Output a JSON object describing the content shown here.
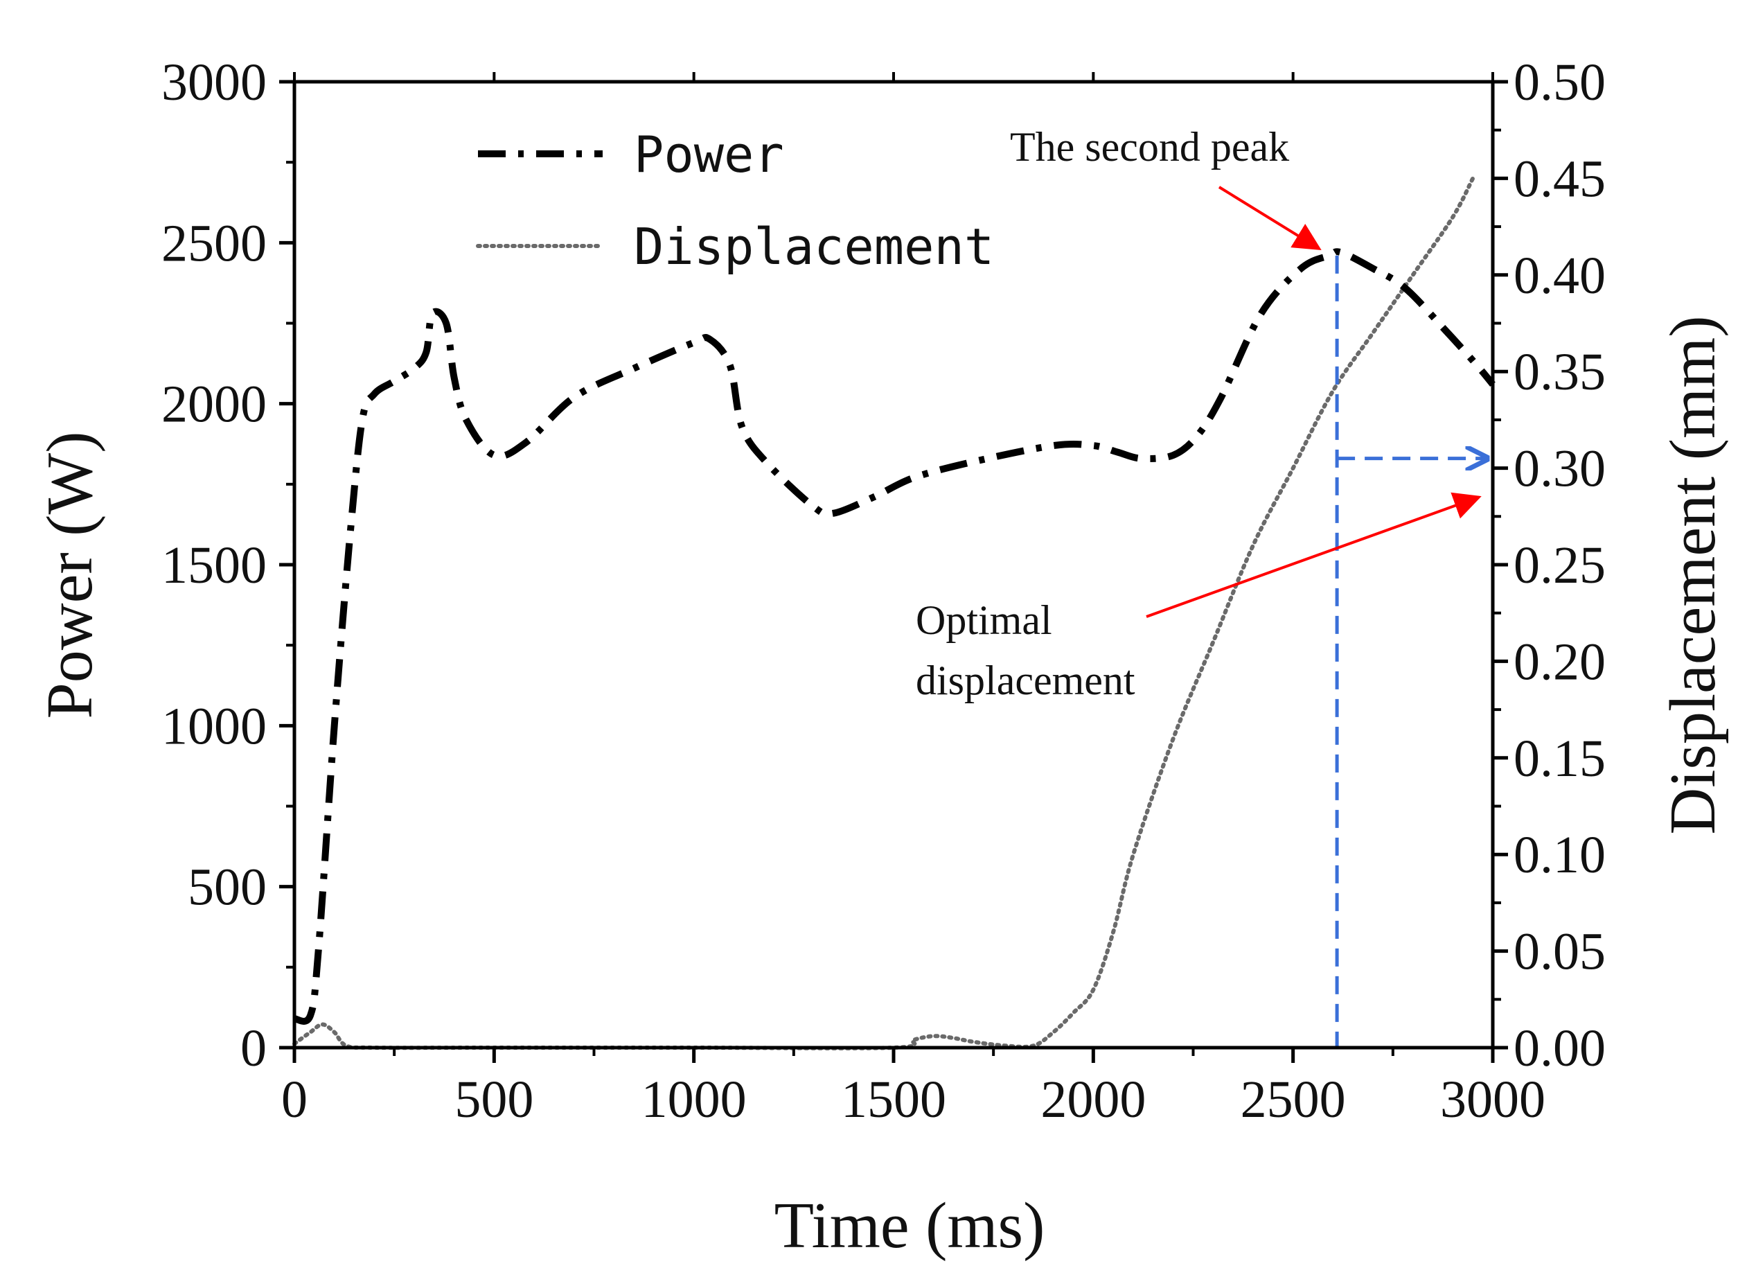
{
  "chart_data": {
    "type": "line",
    "title": "",
    "xlabel": "Time (ms)",
    "ylabel": "Power (W)",
    "y2label": "Displacement (mm)",
    "xlim": [
      0,
      3000
    ],
    "ylim": [
      0,
      3000
    ],
    "y2lim": [
      0,
      0.5
    ],
    "xticks": [
      0,
      500,
      1000,
      1500,
      2000,
      2500,
      3000
    ],
    "yticks": [
      0,
      500,
      1000,
      1500,
      2000,
      2500,
      3000
    ],
    "y2ticks": [
      0,
      0.05,
      0.1,
      0.15,
      0.2,
      0.25,
      0.3,
      0.35,
      0.4,
      0.45,
      0.5
    ],
    "xtick_labels": [
      "0",
      "500",
      "1000",
      "1500",
      "2000",
      "2500",
      "3000"
    ],
    "ytick_labels": [
      "0",
      "500",
      "1000",
      "1500",
      "2000",
      "2500",
      "3000"
    ],
    "y2tick_labels": [
      "0.00",
      "0.05",
      "0.10",
      "0.15",
      "0.20",
      "0.25",
      "0.30",
      "0.35",
      "0.40",
      "0.45",
      "0.50"
    ],
    "legend_position": "top-left",
    "series": [
      {
        "name": "Power",
        "axis": "left",
        "style": "dash-dot",
        "color": "#000000",
        "x": [
          0,
          40,
          60,
          100,
          140,
          170,
          200,
          250,
          300,
          330,
          345,
          380,
          400,
          430,
          500,
          580,
          700,
          850,
          1000,
          1040,
          1090,
          1120,
          1180,
          1300,
          1350,
          1450,
          1550,
          1700,
          1900,
          2000,
          2060,
          2120,
          2200,
          2260,
          2320,
          2420,
          2520,
          2590,
          2620,
          2700,
          2780,
          2880,
          2960,
          3000
        ],
        "values": [
          90,
          100,
          300,
          1000,
          1600,
          1950,
          2030,
          2070,
          2110,
          2160,
          2280,
          2250,
          2080,
          1950,
          1840,
          1880,
          2020,
          2110,
          2190,
          2200,
          2120,
          1930,
          1820,
          1680,
          1660,
          1710,
          1770,
          1820,
          1870,
          1870,
          1850,
          1830,
          1840,
          1900,
          2020,
          2280,
          2420,
          2460,
          2470,
          2420,
          2360,
          2230,
          2120,
          2060
        ]
      },
      {
        "name": "Displacement",
        "axis": "right",
        "style": "dotted",
        "color": "#666666",
        "x": [
          0,
          40,
          70,
          100,
          130,
          200,
          500,
          1000,
          1500,
          1550,
          1600,
          1650,
          1700,
          1780,
          1850,
          1900,
          1950,
          2000,
          2050,
          2100,
          2200,
          2300,
          2400,
          2500,
          2600,
          2700,
          2800,
          2900,
          2950
        ],
        "values": [
          0.002,
          0.008,
          0.012,
          0.008,
          0.001,
          0,
          0,
          0,
          0,
          0.004,
          0.006,
          0.005,
          0.003,
          0.001,
          0.001,
          0.008,
          0.018,
          0.03,
          0.06,
          0.1,
          0.16,
          0.21,
          0.26,
          0.3,
          0.34,
          0.37,
          0.4,
          0.43,
          0.45
        ]
      }
    ],
    "legend": {
      "power": "Power",
      "displacement": "Displacement"
    },
    "annotations": {
      "second_peak": {
        "label": "The second peak",
        "arrow_to": [
          2600,
          2460
        ],
        "color": "#ff0000"
      },
      "optimal": {
        "line1": "Optimal",
        "line2": "displacement",
        "arrow_to": [
          3000,
          0.285
        ],
        "color": "#ff0000"
      },
      "guide": {
        "x": 2610,
        "y2": 0.305,
        "color": "#3a6fd8"
      }
    }
  }
}
